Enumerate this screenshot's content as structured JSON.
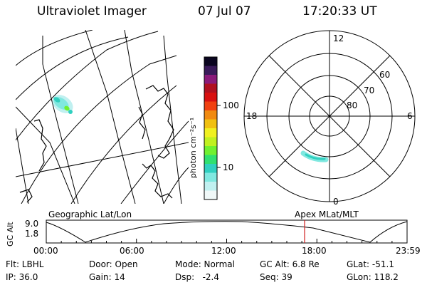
{
  "header": {
    "title": "Ultraviolet Imager",
    "date": "07 Jul 07",
    "time": "17:20:33 UT"
  },
  "colorbar": {
    "unit_label": "photon cm⁻²s⁻¹",
    "ticks": [
      "100",
      "10"
    ],
    "colors": [
      "#0b0620",
      "#3a1a5a",
      "#8a1a7a",
      "#b01020",
      "#d81010",
      "#f04010",
      "#f08a10",
      "#f0c010",
      "#f0f020",
      "#c0f020",
      "#70f030",
      "#30e070",
      "#30d0c0",
      "#80e8e0",
      "#c0f0f0",
      "#f0f8f8"
    ]
  },
  "polar": {
    "labels": {
      "top": "12",
      "left": "18",
      "right": "6",
      "bottom": "0"
    },
    "lat_labels": [
      "60",
      "70",
      "80"
    ]
  },
  "timeline": {
    "left_title": "Geographic Lat/Lon",
    "right_title": "Apex MLat/MLT",
    "ylabel": "GC Alt",
    "y_ticks": [
      "9.0",
      "1.8"
    ],
    "x_ticks": [
      "00:00",
      "06:00",
      "12:00",
      "18:00",
      "23:59"
    ],
    "marker_color": "#d02020"
  },
  "status": {
    "flt": "Flt: LBHL",
    "ip": "IP: 36.0",
    "door": "Door: Open",
    "gain": "Gain: 14",
    "mode": "Mode: Normal",
    "dsp": "Dsp:   -2.4",
    "gcalt": "GC Alt: 6.8 Re",
    "seq": "Seq: 39",
    "glat": "GLat: -51.1",
    "glon": "GLon: 118.2"
  }
}
